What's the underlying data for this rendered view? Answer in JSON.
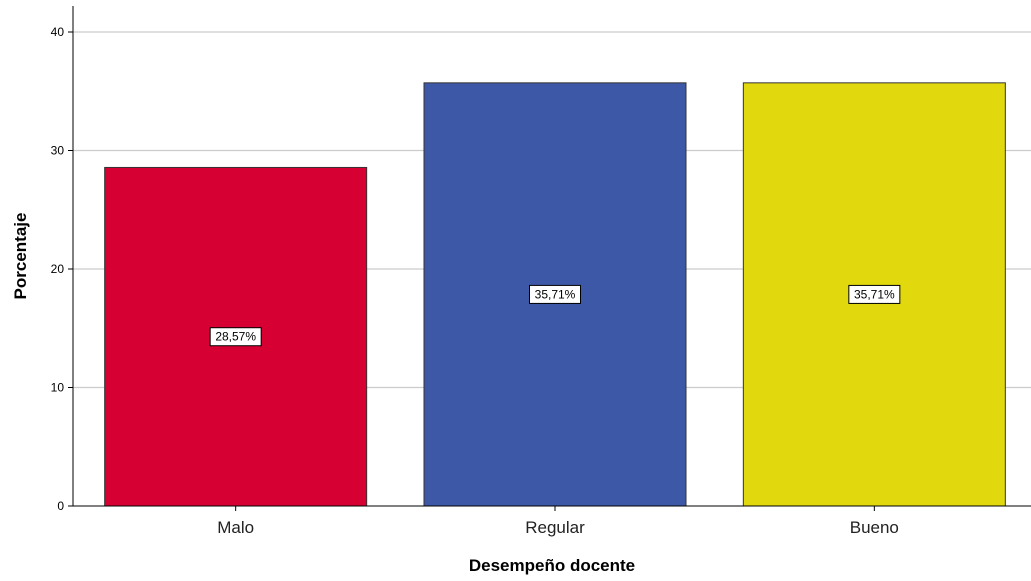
{
  "chart_data": {
    "type": "bar",
    "title": "",
    "xlabel": "Desempeño docente",
    "ylabel": "Porcentaje",
    "categories": [
      "Malo",
      "Regular",
      "Bueno"
    ],
    "values": [
      28.57,
      35.71,
      35.71
    ],
    "data_labels": [
      "28,57%",
      "35,71%",
      "35,71%"
    ],
    "colors": [
      "#d70033",
      "#3e58a8",
      "#e1d80e"
    ],
    "ylim": [
      0,
      40
    ],
    "yticks": [
      "0",
      "10",
      "20",
      "30",
      "40"
    ],
    "grid": true,
    "legend": "none"
  }
}
